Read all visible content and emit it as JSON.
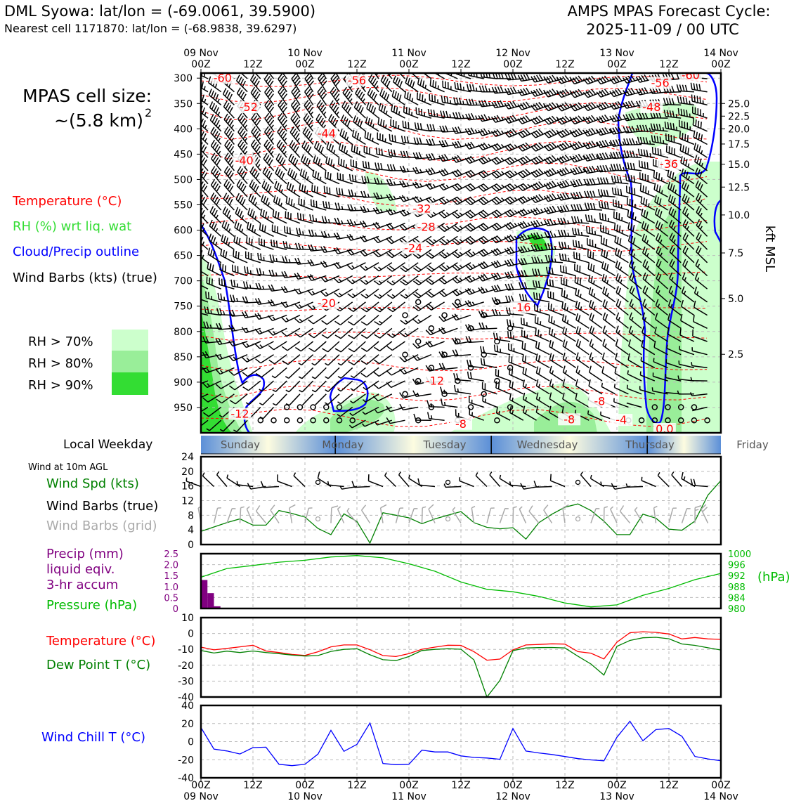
{
  "header": {
    "station": "DML Syowa: lat/lon = (-69.0061, 39.5900)",
    "nearest": "Nearest cell 1171870: lat/lon = (-68.9838, 39.6297)",
    "cycle_line1": "AMPS MPAS Forecast Cycle:",
    "cycle_line2": "2025-11-09 / 00 UTC"
  },
  "cell_size": {
    "line1": "MPAS cell size:",
    "line2": "~(5.8 km)",
    "sup": "2"
  },
  "legend_upper": {
    "temperature": "Temperature (°C)",
    "rh": "RH (%) wrt liq. wat",
    "cloud": "Cloud/Precip outline",
    "barbs": "Wind Barbs (kts) (true)",
    "rh70": "RH > 70%",
    "rh80": "RH > 80%",
    "rh90": "RH > 90%"
  },
  "colors": {
    "temperature": "#ff0000",
    "rh_label": "#33dd33",
    "cloud": "#0000ff",
    "rh70": "#ccffcc",
    "rh80": "#99ee99",
    "rh90": "#33dd33",
    "wind_speed": "#008000",
    "barbs_grid": "#aaaaaa",
    "precip": "#800080",
    "pressure": "#00bb00",
    "dewpoint": "#008000",
    "windchill": "#0000ff"
  },
  "time_axis": {
    "top_dates": [
      "09 Nov",
      "10 Nov",
      "11 Nov",
      "12 Nov",
      "13 Nov",
      "14 Nov"
    ],
    "tick_labels": [
      "00Z",
      "12Z",
      "00Z",
      "12Z",
      "00Z",
      "12Z",
      "00Z",
      "12Z",
      "00Z",
      "12Z",
      "00Z"
    ],
    "bottom_dates": [
      "09 Nov",
      "10 Nov",
      "11 Nov",
      "12 Nov",
      "13 Nov",
      "14 Nov"
    ]
  },
  "weekday": {
    "label": "Local Weekday",
    "days": [
      "Sunday",
      "Monday",
      "Tuesday",
      "Wednesday",
      "Thursday",
      "Friday"
    ]
  },
  "panel_labels": {
    "wind_title": "Wind at 10m AGL",
    "wind_spd": "Wind Spd (kts)",
    "wind_barbs_true": "Wind Barbs (true)",
    "wind_barbs_grid": "Wind Barbs (grid)",
    "precip1": "Precip (mm)",
    "precip2": "liquid eqiv.",
    "precip3": "3-hr accum",
    "pressure": "Pressure (hPa)",
    "pressure_unit": "(hPa)",
    "temp": "Temperature (°C)",
    "dewpt": "Dew Point T (°C)",
    "windchill": "Wind Chill T (°C)",
    "kft": "kft MSL"
  },
  "chart_data": [
    {
      "type": "contour",
      "name": "upper-air cross section",
      "x_hours": [
        0,
        120
      ],
      "pressure_levels": [
        "300",
        "350",
        "400",
        "450",
        "500",
        "550",
        "600",
        "650",
        "700",
        "750",
        "800",
        "850",
        "900",
        "950"
      ],
      "kft_labels": [
        "25.0",
        "22.5",
        "20.0",
        "17.5",
        "15.0",
        "12.5",
        "10.0",
        "7.5",
        "5.0",
        "2.5"
      ],
      "kft_pressure": [
        350,
        375,
        400,
        430,
        470,
        515,
        570,
        645,
        735,
        845
      ],
      "temperature_labels": [
        {
          "text": "-60",
          "hour": 5,
          "p": 307
        },
        {
          "text": "-56",
          "hour": 36,
          "p": 312
        },
        {
          "text": "-52",
          "hour": 11,
          "p": 365
        },
        {
          "text": "-44",
          "hour": 29,
          "p": 417
        },
        {
          "text": "-40",
          "hour": 10,
          "p": 470
        },
        {
          "text": "-32",
          "hour": 51,
          "p": 565
        },
        {
          "text": "-28",
          "hour": 52,
          "p": 601
        },
        {
          "text": "-24",
          "hour": 49,
          "p": 643
        },
        {
          "text": "-20",
          "hour": 29,
          "p": 752
        },
        {
          "text": "-16",
          "hour": 74,
          "p": 760
        },
        {
          "text": "-12",
          "hour": 9,
          "p": 970
        },
        {
          "text": "-12",
          "hour": 54,
          "p": 905
        },
        {
          "text": "-8",
          "hour": 60,
          "p": 990
        },
        {
          "text": "-8",
          "hour": 85,
          "p": 981
        },
        {
          "text": "-8",
          "hour": 92,
          "p": 945
        },
        {
          "text": "-4",
          "hour": 97,
          "p": 982
        },
        {
          "text": "-60",
          "hour": 113,
          "p": 302
        },
        {
          "text": "-56",
          "hour": 106,
          "p": 317
        },
        {
          "text": "-48",
          "hour": 104,
          "p": 365
        },
        {
          "text": "-36",
          "hour": 108,
          "p": 477
        },
        {
          "text": "0.0",
          "hour": 107,
          "p": 1000
        }
      ]
    },
    {
      "type": "line",
      "name": "Wind Spd (kts)",
      "ylim": [
        0,
        24
      ],
      "yticks": [
        "0",
        "4",
        "8",
        "12",
        "16",
        "20",
        "24"
      ],
      "x_hours": [
        0,
        6,
        9,
        12,
        15,
        18,
        21,
        24,
        27,
        30,
        33,
        36,
        39,
        42,
        45,
        48,
        51,
        54,
        57,
        60,
        63,
        66,
        69,
        72,
        75,
        78,
        81,
        84,
        87,
        90,
        93,
        96,
        99,
        102,
        105,
        108,
        111,
        114,
        117,
        120
      ],
      "values": [
        3.6,
        6,
        7,
        5.3,
        5.3,
        9.3,
        8.5,
        7.5,
        4.4,
        2.7,
        8.4,
        6.3,
        0.4,
        8.7,
        8,
        7.3,
        5.7,
        7,
        8,
        9,
        6,
        4.7,
        4.3,
        4.6,
        1.5,
        6,
        8.3,
        10.2,
        11.1,
        9.3,
        6.4,
        2.7,
        2.7,
        8.3,
        7.2,
        4.2,
        3.9,
        6.4,
        13.5,
        17.5
      ]
    },
    {
      "type": "bar+line",
      "name": "Precip (mm) / Pressure (hPa)",
      "precip_ylim": [
        0,
        2.5
      ],
      "precip_yticks": [
        "0",
        "0.5",
        "1.0",
        "1.5",
        "2.0",
        "2.5"
      ],
      "precip_bars": [
        {
          "start": 0,
          "end": 1.5,
          "value": 1.3
        },
        {
          "start": 1.5,
          "end": 3,
          "value": 0.7
        },
        {
          "start": 3,
          "end": 4.5,
          "value": 0.1
        }
      ],
      "pressure_ylim": [
        980,
        1000
      ],
      "pressure_yticks": [
        "1000",
        "996",
        "992",
        "988",
        "984",
        "980"
      ],
      "x_hours": [
        0,
        6,
        12,
        18,
        24,
        30,
        36,
        42,
        48,
        54,
        60,
        66,
        72,
        78,
        84,
        90,
        96,
        102,
        108,
        114,
        120
      ],
      "values": [
        991.4,
        994.6,
        995.7,
        996.9,
        997.6,
        998.8,
        999.3,
        998.5,
        996.3,
        993.6,
        989.7,
        987.0,
        986.1,
        984.4,
        982.0,
        980.6,
        981.3,
        984.8,
        987.3,
        990.5,
        992.8
      ]
    },
    {
      "type": "line",
      "name": "Temperature / Dew Point (°C)",
      "ylim": [
        -40,
        10
      ],
      "yticks": [
        "10",
        "0",
        "-10",
        "-20",
        "-30",
        "-40"
      ],
      "x_hours": [
        0,
        3,
        6,
        9,
        12,
        15,
        18,
        21,
        24,
        27,
        30,
        33,
        36,
        39,
        42,
        45,
        48,
        51,
        54,
        57,
        60,
        63,
        66,
        69,
        72,
        75,
        78,
        81,
        84,
        87,
        90,
        93,
        96,
        99,
        102,
        105,
        108,
        111,
        114,
        117,
        120
      ],
      "series": [
        {
          "name": "Temperature (°C)",
          "color": "#ff0000",
          "values": [
            -8.6,
            -10.3,
            -9.4,
            -8.4,
            -7.4,
            -11,
            -12,
            -13.2,
            -13.8,
            -11.5,
            -8.4,
            -7.2,
            -7.2,
            -10.2,
            -13.9,
            -14.5,
            -12.7,
            -9.9,
            -8.6,
            -7.4,
            -7.5,
            -11.4,
            -16.8,
            -16.1,
            -10.3,
            -7.2,
            -6.9,
            -6.5,
            -6.7,
            -11.4,
            -12.4,
            -16,
            -5.5,
            0.5,
            1.1,
            0.7,
            -0.3,
            -3.4,
            -2.5,
            -3.4,
            -3.7
          ]
        },
        {
          "name": "Dew Point T (°C)",
          "color": "#008000",
          "values": [
            -10.7,
            -12.3,
            -11.1,
            -12,
            -11,
            -12,
            -12.7,
            -13.6,
            -14.2,
            -13.9,
            -11.3,
            -10,
            -9.6,
            -13.4,
            -16.5,
            -17.1,
            -14.5,
            -10.7,
            -10,
            -9.6,
            -9.9,
            -16.6,
            -40,
            -29.5,
            -10.8,
            -9.1,
            -8.9,
            -8.8,
            -9.1,
            -14.3,
            -19.2,
            -26.2,
            -8.1,
            -4.4,
            -2.7,
            -2.4,
            -3.3,
            -6.6,
            -7.5,
            -9,
            -10.4
          ]
        }
      ]
    },
    {
      "type": "line",
      "name": "Wind Chill T (°C)",
      "ylim": [
        -40,
        40
      ],
      "yticks": [
        "40",
        "20",
        "0",
        "-20",
        "-40"
      ],
      "x_hours": [
        0,
        3,
        6,
        9,
        12,
        15,
        18,
        21,
        24,
        27,
        30,
        33,
        36,
        39,
        42,
        45,
        48,
        51,
        54,
        57,
        60,
        63,
        66,
        69,
        72,
        75,
        78,
        81,
        84,
        87,
        90,
        93,
        96,
        99,
        102,
        105,
        108,
        111,
        114,
        117,
        120
      ],
      "values": [
        15.5,
        -8.2,
        -10.3,
        -13.7,
        -6.6,
        -6.1,
        -25,
        -26.6,
        -25.1,
        -13.8,
        12.5,
        -10.7,
        -3,
        20.6,
        -24.2,
        -25.5,
        -25,
        -9.4,
        -11.4,
        -11.4,
        -15.8,
        -17.5,
        -18.1,
        -19.5,
        14.5,
        -10.4,
        -12.5,
        -14.2,
        -16.5,
        -18.8,
        -20.2,
        -21.2,
        4.8,
        22.5,
        0.9,
        13.3,
        14.5,
        5.9,
        -16.4,
        -19.1,
        -21.1
      ]
    }
  ]
}
